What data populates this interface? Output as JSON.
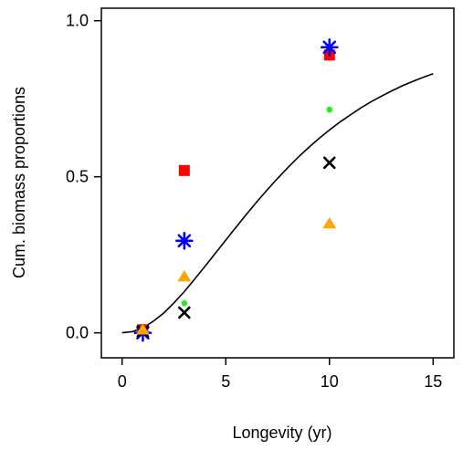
{
  "chart_data": {
    "type": "scatter",
    "title": "",
    "xlabel": "Longevity (yr)",
    "ylabel": "Cum. biomass proportions",
    "xlim": [
      -1,
      16
    ],
    "ylim": [
      -0.08,
      1.04
    ],
    "xticks": [
      0,
      5,
      10,
      15
    ],
    "xtick_labels": [
      "0",
      "5",
      "10",
      "15"
    ],
    "yticks": [
      0,
      0.5,
      1
    ],
    "ytick_labels": [
      "0.0",
      "0.5",
      "1.0"
    ],
    "grid": false,
    "legend": "none",
    "series": [
      {
        "marker": "square",
        "color": "#ff0000",
        "points": [
          [
            1,
            0.01
          ],
          [
            3,
            0.52
          ],
          [
            10,
            0.89
          ]
        ]
      },
      {
        "marker": "asterisk",
        "color": "#0000ff",
        "points": [
          [
            1,
            0.0
          ],
          [
            3,
            0.295
          ],
          [
            10,
            0.915
          ]
        ]
      },
      {
        "marker": "cross",
        "color": "#000000",
        "points": [
          [
            1,
            0.005
          ],
          [
            3,
            0.065
          ],
          [
            10,
            0.545
          ]
        ]
      },
      {
        "marker": "dot",
        "color": "#22ee22",
        "points": [
          [
            1,
            0.012
          ],
          [
            3,
            0.095
          ],
          [
            10,
            0.715
          ]
        ]
      },
      {
        "marker": "triangle",
        "color": "#ffa500",
        "points": [
          [
            1,
            0.01
          ],
          [
            3,
            0.18
          ],
          [
            10,
            0.35
          ]
        ]
      }
    ],
    "fitted_curve": {
      "color": "#000000",
      "x": [
        0,
        0.5,
        1,
        1.5,
        2,
        2.5,
        3,
        3.5,
        4,
        4.5,
        5,
        5.5,
        6,
        6.5,
        7,
        7.5,
        8,
        8.5,
        9,
        9.5,
        10,
        10.5,
        11,
        11.5,
        12,
        12.5,
        13,
        13.5,
        14,
        14.5,
        15
      ],
      "y": [
        0.0,
        0.004,
        0.016,
        0.037,
        0.063,
        0.096,
        0.132,
        0.172,
        0.213,
        0.255,
        0.297,
        0.339,
        0.38,
        0.42,
        0.458,
        0.495,
        0.53,
        0.563,
        0.594,
        0.623,
        0.65,
        0.675,
        0.698,
        0.72,
        0.74,
        0.758,
        0.775,
        0.791,
        0.805,
        0.818,
        0.83
      ]
    }
  }
}
